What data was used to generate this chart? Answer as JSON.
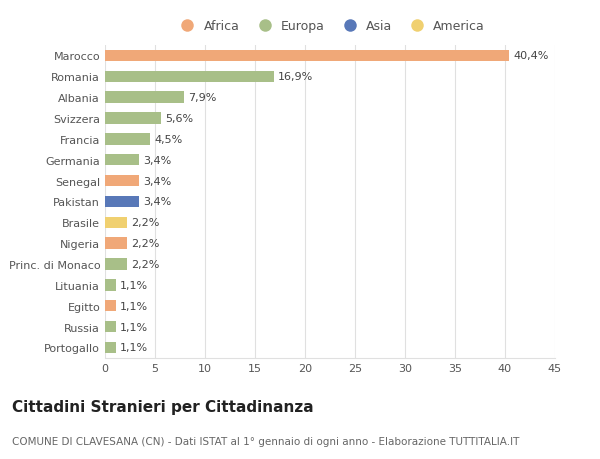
{
  "categories": [
    "Marocco",
    "Romania",
    "Albania",
    "Svizzera",
    "Francia",
    "Germania",
    "Senegal",
    "Pakistan",
    "Brasile",
    "Nigeria",
    "Princ. di Monaco",
    "Lituania",
    "Egitto",
    "Russia",
    "Portogallo"
  ],
  "values": [
    40.4,
    16.9,
    7.9,
    5.6,
    4.5,
    3.4,
    3.4,
    3.4,
    2.2,
    2.2,
    2.2,
    1.1,
    1.1,
    1.1,
    1.1
  ],
  "labels": [
    "40,4%",
    "16,9%",
    "7,9%",
    "5,6%",
    "4,5%",
    "3,4%",
    "3,4%",
    "3,4%",
    "2,2%",
    "2,2%",
    "2,2%",
    "1,1%",
    "1,1%",
    "1,1%",
    "1,1%"
  ],
  "continents": [
    "Africa",
    "Europa",
    "Europa",
    "Europa",
    "Europa",
    "Europa",
    "Africa",
    "Asia",
    "America",
    "Africa",
    "Europa",
    "Europa",
    "Africa",
    "Europa",
    "Europa"
  ],
  "continent_colors": {
    "Africa": "#F0A878",
    "Europa": "#A8BF88",
    "Asia": "#5878B8",
    "America": "#F0D070"
  },
  "legend_order": [
    "Africa",
    "Europa",
    "Asia",
    "America"
  ],
  "xlim": [
    0,
    45
  ],
  "xticks": [
    0,
    5,
    10,
    15,
    20,
    25,
    30,
    35,
    40,
    45
  ],
  "title": "Cittadini Stranieri per Cittadinanza",
  "subtitle": "COMUNE DI CLAVESANA (CN) - Dati ISTAT al 1° gennaio di ogni anno - Elaborazione TUTTITALIA.IT",
  "background_color": "#ffffff",
  "bar_height": 0.55,
  "grid_color": "#e0e0e0",
  "label_fontsize": 8,
  "tick_fontsize": 8,
  "title_fontsize": 11,
  "subtitle_fontsize": 7.5
}
